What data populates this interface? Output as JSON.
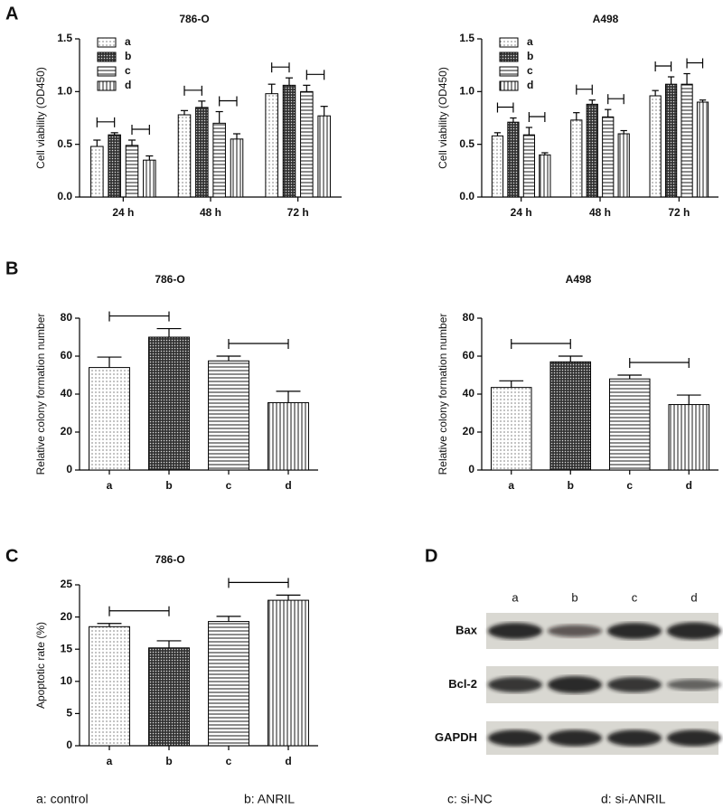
{
  "panels": [
    "A",
    "B",
    "C",
    "D"
  ],
  "chart_data": [
    {
      "type": "bar",
      "title": "786-O",
      "y_label": "Cell viability (OD450)",
      "categories": [
        "24 h",
        "48 h",
        "72 h"
      ],
      "series": [
        {
          "name": "a",
          "pattern": "dots",
          "values": [
            0.48,
            0.78,
            0.98
          ],
          "errors": [
            0.06,
            0.04,
            0.09
          ]
        },
        {
          "name": "b",
          "pattern": "cross",
          "values": [
            0.59,
            0.85,
            1.06
          ],
          "errors": [
            0.02,
            0.06,
            0.07
          ]
        },
        {
          "name": "c",
          "pattern": "hlines",
          "values": [
            0.49,
            0.7,
            1.0
          ],
          "errors": [
            0.05,
            0.11,
            0.06
          ]
        },
        {
          "name": "d",
          "pattern": "vlines",
          "values": [
            0.35,
            0.55,
            0.77
          ],
          "errors": [
            0.04,
            0.05,
            0.09
          ]
        }
      ],
      "significance": [
        [
          "*",
          "*"
        ],
        [
          "*",
          "*"
        ],
        [
          "*",
          "**"
        ]
      ],
      "ylim": [
        0,
        1.5
      ],
      "yticks": [
        {
          "value": 0,
          "label": "0.0"
        },
        0.5,
        {
          "value": 1,
          "label": "1.0"
        },
        1.5
      ]
    },
    {
      "type": "bar",
      "title": "A498",
      "y_label": "Cell  viability (OD450)",
      "categories": [
        "24 h",
        "48 h",
        "72 h"
      ],
      "series": [
        {
          "name": "a",
          "pattern": "dots",
          "values": [
            0.58,
            0.73,
            0.96
          ],
          "errors": [
            0.03,
            0.07,
            0.05
          ]
        },
        {
          "name": "b",
          "pattern": "cross",
          "values": [
            0.71,
            0.88,
            1.07
          ],
          "errors": [
            0.04,
            0.04,
            0.07
          ]
        },
        {
          "name": "c",
          "pattern": "hlines",
          "values": [
            0.59,
            0.76,
            1.07
          ],
          "errors": [
            0.07,
            0.07,
            0.1
          ]
        },
        {
          "name": "d",
          "pattern": "vlines",
          "values": [
            0.4,
            0.6,
            0.9
          ],
          "errors": [
            0.02,
            0.03,
            0.02
          ]
        }
      ],
      "significance": [
        [
          "*",
          "**"
        ],
        [
          "*",
          "*"
        ],
        [
          "*",
          "**"
        ]
      ],
      "ylim": [
        0,
        1.5
      ],
      "yticks": [
        {
          "value": 0,
          "label": "0.0"
        },
        0.5,
        {
          "value": 1,
          "label": "1.0"
        },
        1.5
      ]
    },
    {
      "type": "bar",
      "title": "786-O",
      "y_label": "Relative colony formation number",
      "categories": [
        "a",
        "b",
        "c",
        "d"
      ],
      "patterns": [
        "dots",
        "cross",
        "hlines",
        "vlines"
      ],
      "values": [
        54,
        70,
        57.5,
        35.5
      ],
      "errors": [
        5.5,
        4.5,
        2.5,
        6
      ],
      "significance": [
        "*",
        "**"
      ],
      "ylim": [
        0,
        80
      ],
      "yticks": [
        0,
        20,
        40,
        60,
        80
      ]
    },
    {
      "type": "bar",
      "title": "A498",
      "y_label": "Relative colony formation number",
      "categories": [
        "a",
        "b",
        "c",
        "d"
      ],
      "patterns": [
        "dots",
        "cross",
        "hlines",
        "vlines"
      ],
      "values": [
        43.5,
        57,
        48,
        34.5
      ],
      "errors": [
        3.5,
        3,
        2,
        5
      ],
      "significance": [
        "**",
        "*"
      ],
      "ylim": [
        0,
        80
      ],
      "yticks": [
        0,
        20,
        40,
        60,
        80
      ]
    },
    {
      "type": "bar",
      "title": "786-O",
      "y_label": "Apoptotic rate (%)",
      "categories": [
        "a",
        "b",
        "c",
        "d"
      ],
      "patterns": [
        "dots",
        "cross",
        "hlines",
        "vlines"
      ],
      "values": [
        18.5,
        15.2,
        19.3,
        22.6
      ],
      "errors": [
        0.5,
        1.1,
        0.8,
        0.8
      ],
      "significance": [
        "*",
        "*"
      ],
      "ylim": [
        0,
        25
      ],
      "yticks": [
        0,
        5,
        10,
        15,
        20,
        25
      ]
    }
  ],
  "blot": {
    "lanes": [
      "a",
      "b",
      "c",
      "d"
    ],
    "rows": [
      "Bax",
      "Bcl-2",
      "GAPDH"
    ]
  },
  "legend": [
    "a: control",
    "b: ANRIL",
    "c: si-NC",
    "d: si-ANRIL"
  ]
}
